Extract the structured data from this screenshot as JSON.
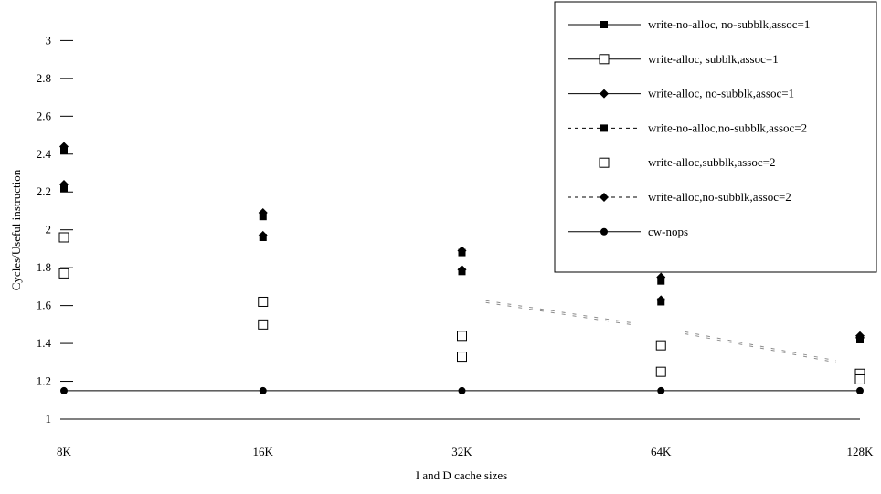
{
  "chart_data": {
    "type": "line",
    "xlabel": "I and D cache sizes",
    "ylabel": "Cycles/Useful instruction",
    "categories": [
      "8K",
      "16K",
      "32K",
      "64K",
      "128K"
    ],
    "ylim": [
      1,
      3
    ],
    "yticks": [
      "1",
      "1.2",
      "1.4",
      "1.6",
      "1.8",
      "2",
      "2.2",
      "2.4",
      "2.6",
      "2.8",
      "3"
    ],
    "grid": false,
    "legend_position": "top-right",
    "series": [
      {
        "name": "write-no-alloc, no-subblk,assoc=1",
        "marker": "filled-square",
        "line": "solid",
        "values": [
          2.42,
          2.07,
          1.88,
          1.73,
          1.42
        ]
      },
      {
        "name": "write-alloc, subblk,assoc=1",
        "marker": "open-square",
        "line": "solid",
        "values": [
          1.96,
          1.62,
          1.44,
          1.39,
          1.24
        ]
      },
      {
        "name": "write-alloc, no-subblk,assoc=1",
        "marker": "filled-diamond",
        "line": "solid",
        "values": [
          2.44,
          2.09,
          1.89,
          1.75,
          1.44
        ]
      },
      {
        "name": "write-no-alloc,no-subblk,assoc=2",
        "marker": "filled-square",
        "line": "dashed",
        "values": [
          2.22,
          1.96,
          1.78,
          1.62,
          1.42
        ]
      },
      {
        "name": "write-alloc,subblk,assoc=2",
        "marker": "open-square",
        "line": "none",
        "values": [
          1.77,
          1.5,
          1.33,
          1.25,
          1.21
        ]
      },
      {
        "name": "write-alloc,no-subblk,assoc=2",
        "marker": "filled-diamond",
        "line": "dashed",
        "values": [
          2.24,
          1.97,
          1.79,
          1.63,
          1.43
        ]
      },
      {
        "name": "cw-nops",
        "marker": "filled-circle",
        "line": "solid",
        "values": [
          1.15,
          1.15,
          1.15,
          1.15,
          1.15
        ]
      }
    ]
  }
}
